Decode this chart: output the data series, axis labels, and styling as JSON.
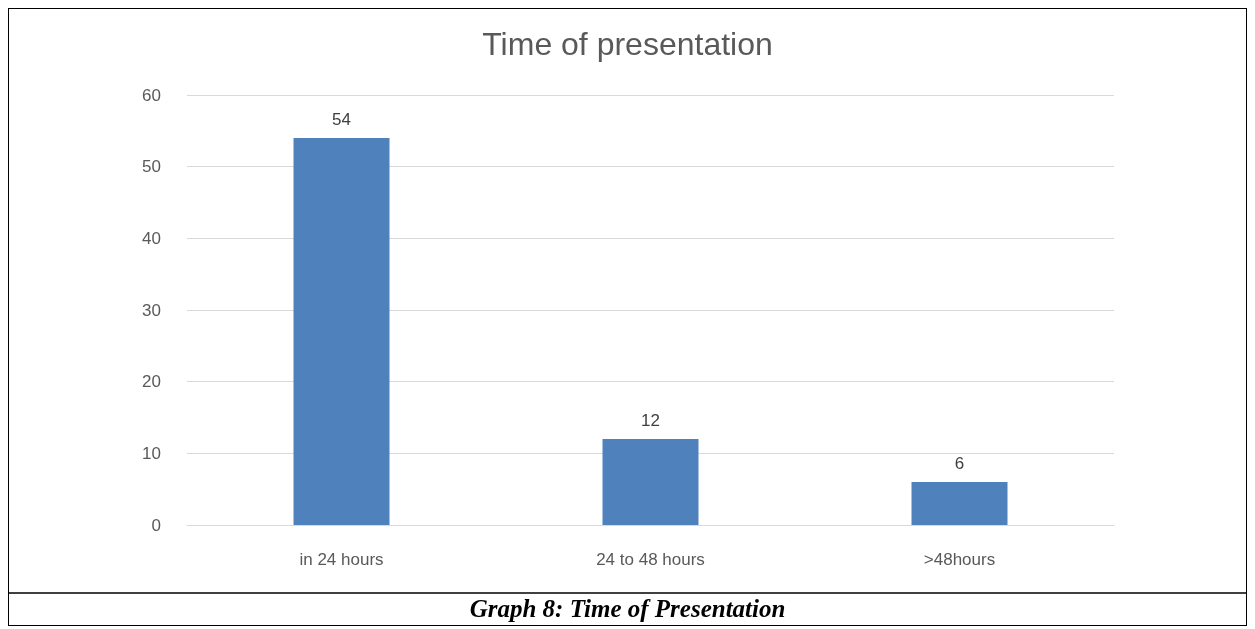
{
  "chart_data": {
    "type": "bar",
    "title": "Time of presentation",
    "categories": [
      "in 24 hours",
      "24 to 48 hours",
      ">48hours"
    ],
    "values": [
      54,
      12,
      6
    ],
    "color": "#4f81bd",
    "ylim": [
      0,
      60
    ],
    "yticks": [
      0,
      10,
      20,
      30,
      40,
      50,
      60
    ],
    "grid": "y",
    "data_labels": true,
    "annotations": [
      "Graph 8: Time of Presentation"
    ]
  }
}
